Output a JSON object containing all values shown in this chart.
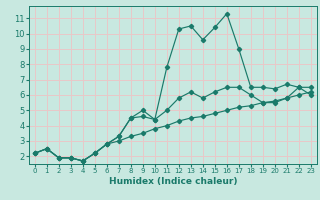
{
  "xlabel": "Humidex (Indice chaleur)",
  "bg_color": "#c8e8e0",
  "grid_color": "#e8c8c8",
  "line_color": "#1a7a6a",
  "xlim": [
    -0.5,
    23.5
  ],
  "ylim": [
    1.5,
    11.8
  ],
  "xticks": [
    0,
    1,
    2,
    3,
    4,
    5,
    6,
    7,
    8,
    9,
    10,
    11,
    12,
    13,
    14,
    15,
    16,
    17,
    18,
    19,
    20,
    21,
    22,
    23
  ],
  "yticks": [
    2,
    3,
    4,
    5,
    6,
    7,
    8,
    9,
    10,
    11
  ],
  "line1_x": [
    0,
    1,
    2,
    3,
    4,
    5,
    6,
    7,
    8,
    9,
    10,
    11,
    12,
    13,
    14,
    15,
    16,
    17,
    18,
    19,
    20,
    21,
    22,
    23
  ],
  "line1_y": [
    2.2,
    2.5,
    1.9,
    1.9,
    1.7,
    2.2,
    2.8,
    3.3,
    4.5,
    4.6,
    4.4,
    7.8,
    10.3,
    10.5,
    9.6,
    10.4,
    11.3,
    9.0,
    6.5,
    6.5,
    6.4,
    6.7,
    6.5,
    6.0
  ],
  "line2_x": [
    0,
    1,
    2,
    3,
    4,
    5,
    6,
    7,
    8,
    9,
    10,
    11,
    12,
    13,
    14,
    15,
    16,
    17,
    18,
    19,
    20,
    21,
    22,
    23
  ],
  "line2_y": [
    2.2,
    2.5,
    1.9,
    1.9,
    1.7,
    2.2,
    2.8,
    3.3,
    4.5,
    5.0,
    4.4,
    5.0,
    5.8,
    6.2,
    5.8,
    6.2,
    6.5,
    6.5,
    6.0,
    5.5,
    5.5,
    5.8,
    6.5,
    6.5
  ],
  "line3_x": [
    0,
    1,
    2,
    3,
    4,
    5,
    6,
    7,
    8,
    9,
    10,
    11,
    12,
    13,
    14,
    15,
    16,
    17,
    18,
    19,
    20,
    21,
    22,
    23
  ],
  "line3_y": [
    2.2,
    2.5,
    1.9,
    1.9,
    1.7,
    2.2,
    2.8,
    3.0,
    3.3,
    3.5,
    3.8,
    4.0,
    4.3,
    4.5,
    4.6,
    4.8,
    5.0,
    5.2,
    5.3,
    5.5,
    5.6,
    5.8,
    6.0,
    6.2
  ]
}
